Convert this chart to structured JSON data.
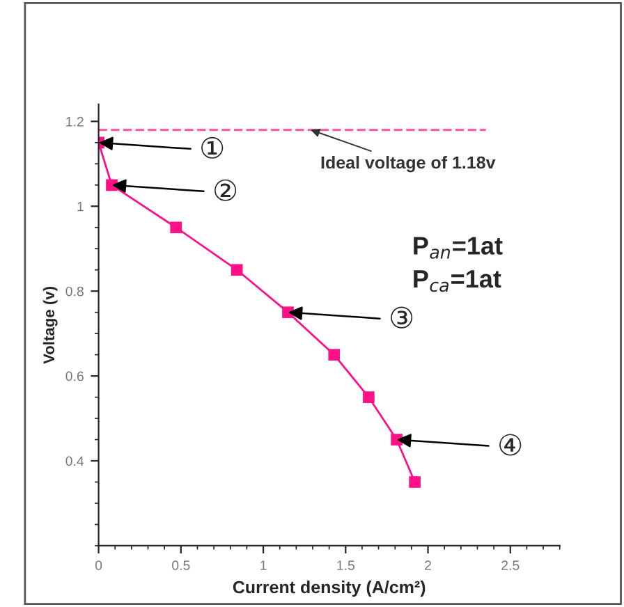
{
  "chart_data": {
    "type": "line",
    "xlabel": "Current density (A/cm²)",
    "ylabel": "Voltage (v)",
    "x": [
      0,
      0.08,
      0.47,
      0.84,
      1.15,
      1.43,
      1.64,
      1.81,
      1.92
    ],
    "series": [
      {
        "color": "#ff1087",
        "values": [
          1.15,
          1.05,
          0.95,
          0.85,
          0.75,
          0.65,
          0.55,
          0.45,
          0.35
        ]
      }
    ],
    "marker": "square",
    "line_style": "solid",
    "xlim": [
      0,
      2.8
    ],
    "ylim": [
      0.2,
      1.24
    ],
    "xticks": [
      0,
      0.5,
      1,
      1.5,
      2,
      2.5
    ],
    "yticks": [
      0.4,
      0.6,
      0.8,
      1,
      1.2
    ],
    "grid": false,
    "legend": false,
    "ref_lines": [
      {
        "axis": "y",
        "value": 1.18,
        "label": "Ideal voltage of 1.18v",
        "color": "#ff5ca8",
        "line_style": "dashed"
      }
    ],
    "annotations": [
      {
        "text": "①",
        "x": 0,
        "y": 1.15
      },
      {
        "text": "②",
        "x": 0.08,
        "y": 1.05
      },
      {
        "text": "③",
        "x": 1.15,
        "y": 0.75
      },
      {
        "text": "④",
        "x": 1.81,
        "y": 0.45
      },
      "P$_{an}$=1at",
      "P$_{ca}$=1at"
    ]
  }
}
